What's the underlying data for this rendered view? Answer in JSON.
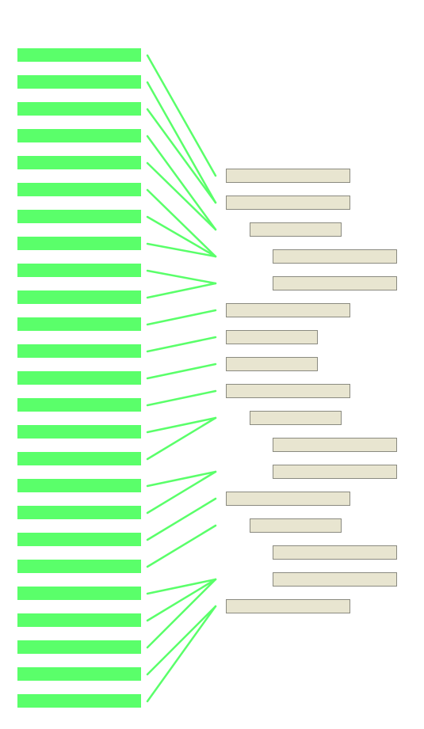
{
  "colors": {
    "left_bar": "#5aff6a",
    "connector": "#5aff6a",
    "right_box_fill": "#e8e5d0",
    "right_box_stroke": "#8a8a80",
    "background": "#ffffff"
  },
  "diagram": {
    "left_items": [
      {
        "id": "L1"
      },
      {
        "id": "L2"
      },
      {
        "id": "L3"
      },
      {
        "id": "L4"
      },
      {
        "id": "L5"
      },
      {
        "id": "L6"
      },
      {
        "id": "L7"
      },
      {
        "id": "L8"
      },
      {
        "id": "L9"
      },
      {
        "id": "L10"
      },
      {
        "id": "L11"
      },
      {
        "id": "L12"
      },
      {
        "id": "L13"
      },
      {
        "id": "L14"
      },
      {
        "id": "L15"
      },
      {
        "id": "L16"
      },
      {
        "id": "L17"
      },
      {
        "id": "L18"
      },
      {
        "id": "L19"
      },
      {
        "id": "L20"
      },
      {
        "id": "L21"
      },
      {
        "id": "L22"
      },
      {
        "id": "L23"
      },
      {
        "id": "L24"
      },
      {
        "id": "L25"
      }
    ],
    "right_items": [
      {
        "id": "R1",
        "indent": 0,
        "width": "wide"
      },
      {
        "id": "R2",
        "indent": 0,
        "width": "wide"
      },
      {
        "id": "R3",
        "indent": 1,
        "width": "medium"
      },
      {
        "id": "R4",
        "indent": 2,
        "width": "wide"
      },
      {
        "id": "R5",
        "indent": 2,
        "width": "wide"
      },
      {
        "id": "R6",
        "indent": 0,
        "width": "wide"
      },
      {
        "id": "R7",
        "indent": 0,
        "width": "medium"
      },
      {
        "id": "R8",
        "indent": 0,
        "width": "medium"
      },
      {
        "id": "R9",
        "indent": 0,
        "width": "wide"
      },
      {
        "id": "R10",
        "indent": 1,
        "width": "medium"
      },
      {
        "id": "R11",
        "indent": 2,
        "width": "wide"
      },
      {
        "id": "R12",
        "indent": 2,
        "width": "wide"
      },
      {
        "id": "R13",
        "indent": 0,
        "width": "wide"
      },
      {
        "id": "R14",
        "indent": 1,
        "width": "medium"
      },
      {
        "id": "R15",
        "indent": 2,
        "width": "wide"
      },
      {
        "id": "R16",
        "indent": 2,
        "width": "wide"
      },
      {
        "id": "R17",
        "indent": 0,
        "width": "wide"
      }
    ],
    "connections": [
      {
        "from": 0,
        "to_point": 0
      },
      {
        "from": 1,
        "to_point": 1
      },
      {
        "from": 2,
        "to_point": 1
      },
      {
        "from": 3,
        "to_point": 2
      },
      {
        "from": 4,
        "to_point": 2
      },
      {
        "from": 5,
        "to_point": 3
      },
      {
        "from": 6,
        "to_point": 3
      },
      {
        "from": 7,
        "to_point": 3
      },
      {
        "from": 8,
        "to_point": 4
      },
      {
        "from": 9,
        "to_point": 4
      },
      {
        "from": 10,
        "to_point": 5
      },
      {
        "from": 11,
        "to_point": 6
      },
      {
        "from": 12,
        "to_point": 7
      },
      {
        "from": 13,
        "to_point": 8
      },
      {
        "from": 14,
        "to_point": 9
      },
      {
        "from": 15,
        "to_point": 9
      },
      {
        "from": 16,
        "to_point": 11
      },
      {
        "from": 17,
        "to_point": 11
      },
      {
        "from": 18,
        "to_point": 12
      },
      {
        "from": 19,
        "to_point": 13
      },
      {
        "from": 20,
        "to_point": 15
      },
      {
        "from": 21,
        "to_point": 15
      },
      {
        "from": 22,
        "to_point": 15
      },
      {
        "from": 23,
        "to_point": 16
      },
      {
        "from": 24,
        "to_point": 16
      }
    ]
  }
}
